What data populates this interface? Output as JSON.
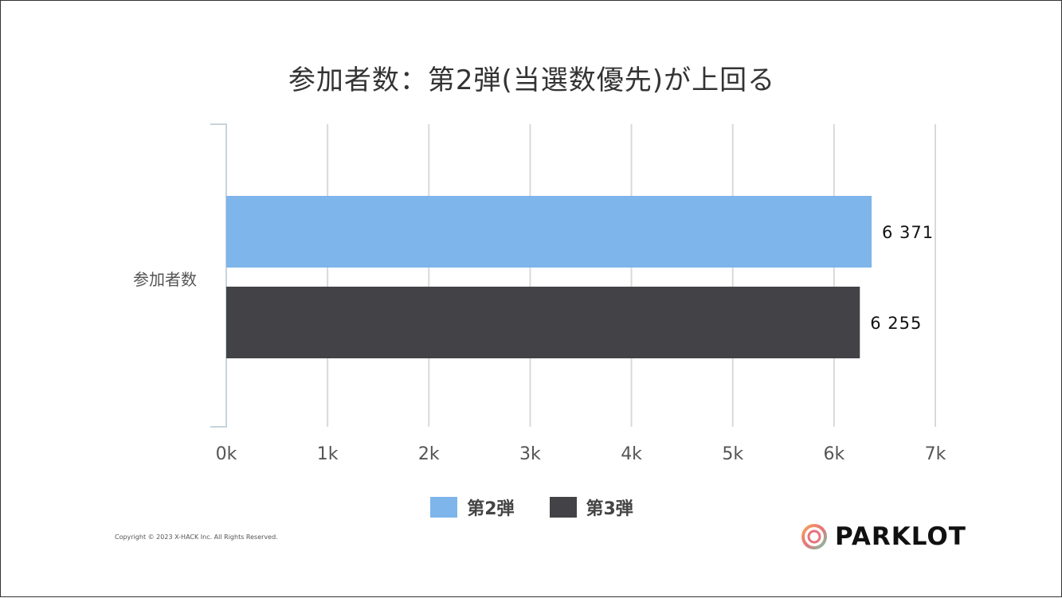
{
  "title": "参加者数：第2弾(当選数優先)が上回る",
  "copyright": "Copyright © 2023 X-HACK Inc. All Rights Reserved.",
  "logo": {
    "text": "PARKLOT",
    "icon": "ring-logo-icon"
  },
  "colors": {
    "series1": "#7EB5EA",
    "series2": "#434247",
    "grid": "#d9d9d9",
    "axis": "#c8d4dc"
  },
  "chart_data": {
    "type": "bar",
    "orientation": "horizontal",
    "categories": [
      "参加者数"
    ],
    "series": [
      {
        "name": "第2弾",
        "values": [
          6371
        ],
        "label": "6 371",
        "color": "#7EB5EA"
      },
      {
        "name": "第3弾",
        "values": [
          6255
        ],
        "label": "6 255",
        "color": "#434247"
      }
    ],
    "xlim": [
      0,
      7000
    ],
    "xticks": [
      0,
      1000,
      2000,
      3000,
      4000,
      5000,
      6000,
      7000
    ],
    "xtick_labels": [
      "0k",
      "1k",
      "2k",
      "3k",
      "4k",
      "5k",
      "6k",
      "7k"
    ],
    "grid": true,
    "legend": "bottom-center"
  }
}
